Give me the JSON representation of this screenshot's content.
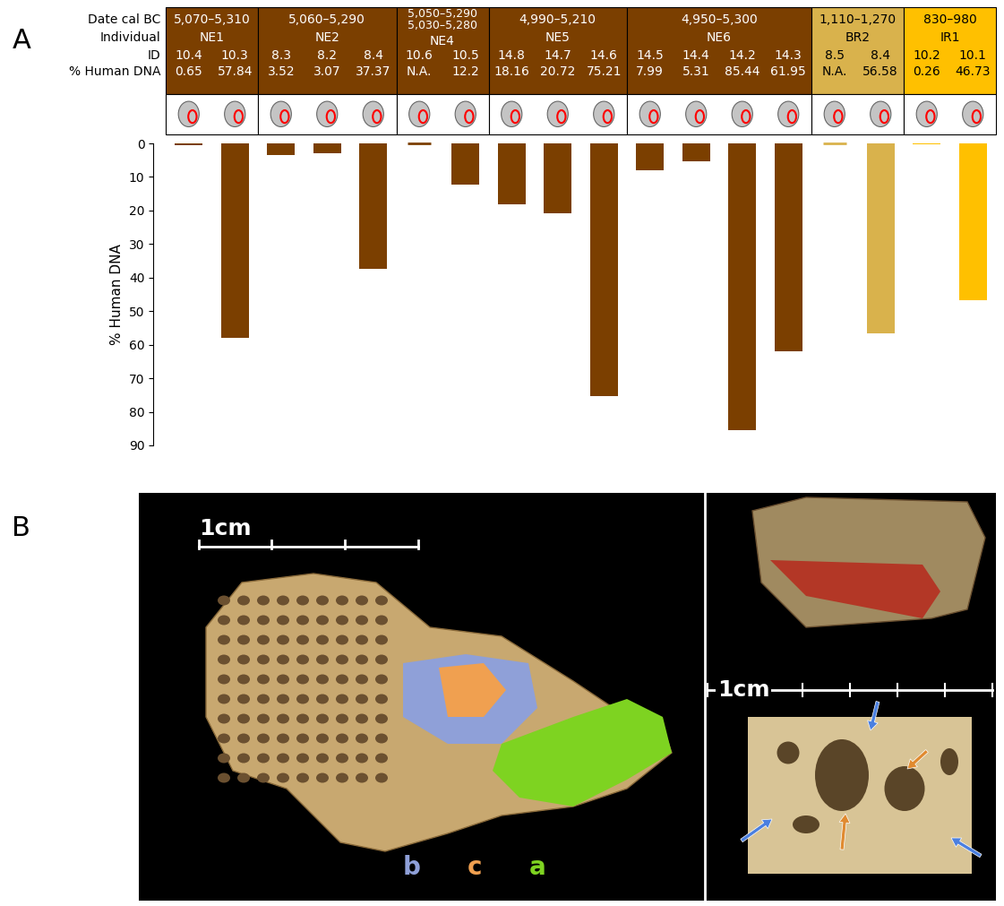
{
  "panel_labels": [
    "A",
    "B"
  ],
  "header": {
    "row_labels": [
      "Date cal BC",
      "Individual",
      "ID",
      "% Human DNA"
    ],
    "groups": [
      {
        "individual": "NE1",
        "dates": [
          "5,070–5,310"
        ],
        "ids": [
          "10.4",
          "10.3"
        ],
        "color": "#7b3f00"
      },
      {
        "individual": "NE2",
        "dates": [
          "5,060–5,290"
        ],
        "ids": [
          "8.3",
          "8.2",
          "8.4"
        ],
        "color": "#7b3f00"
      },
      {
        "individual": "NE4",
        "dates": [
          "5,050–5,290",
          "5,030–5,280"
        ],
        "ids": [
          "10.6",
          "10.5"
        ],
        "color": "#7b3f00"
      },
      {
        "individual": "NE5",
        "dates": [
          "4,990–5,210"
        ],
        "ids": [
          "14.8",
          "14.7",
          "14.6"
        ],
        "color": "#7b3f00"
      },
      {
        "individual": "NE6",
        "dates": [
          "4,950–5,300"
        ],
        "ids": [
          "14.5",
          "14.4",
          "14.2",
          "14.3"
        ],
        "color": "#7b3f00"
      },
      {
        "individual": "BR2",
        "dates": [
          "1,110–1,270"
        ],
        "ids": [
          "8.5",
          "8.4"
        ],
        "color": "#d9b24c"
      },
      {
        "individual": "IR1",
        "dates": [
          "830–980"
        ],
        "ids": [
          "10.2",
          "10.1"
        ],
        "color": "#ffc000"
      }
    ]
  },
  "chart_data": {
    "type": "bar",
    "y_label": "% Human DNA",
    "categories": [
      "10.4",
      "10.3",
      "8.3",
      "8.2",
      "8.4",
      "10.6",
      "10.5",
      "14.8",
      "14.7",
      "14.6",
      "14.5",
      "14.4",
      "14.2",
      "14.3",
      "8.5",
      "8.4",
      "10.2",
      "10.1"
    ],
    "values": [
      0.65,
      57.84,
      3.52,
      3.07,
      37.37,
      null,
      12.2,
      18.16,
      20.72,
      75.21,
      7.99,
      5.31,
      85.44,
      61.95,
      null,
      56.58,
      0.26,
      46.73
    ],
    "value_labels": [
      "0.65",
      "57.84",
      "3.52",
      "3.07",
      "37.37",
      "N.A.",
      "12.2",
      "18.16",
      "20.72",
      "75.21",
      "7.99",
      "5.31",
      "85.44",
      "61.95",
      "N.A.",
      "56.58",
      "0.26",
      "46.73"
    ],
    "colors": [
      "#7b3f00",
      "#7b3f00",
      "#7b3f00",
      "#7b3f00",
      "#7b3f00",
      "#7b3f00",
      "#7b3f00",
      "#7b3f00",
      "#7b3f00",
      "#7b3f00",
      "#7b3f00",
      "#7b3f00",
      "#7b3f00",
      "#7b3f00",
      "#d9b24c",
      "#d9b24c",
      "#ffc000",
      "#ffc000"
    ],
    "ylim": [
      90,
      0
    ],
    "yticks": [
      0,
      10,
      20,
      30,
      40,
      50,
      60,
      70,
      80,
      90
    ],
    "tick_labels": "y",
    "grid": false
  },
  "photo_panel": {
    "scale_labels": [
      "1cm",
      "1cm"
    ],
    "region_labels": [
      {
        "text": "b",
        "color": "#8fa0d8"
      },
      {
        "text": "c",
        "color": "#f0a050"
      },
      {
        "text": "a",
        "color": "#7ed321"
      }
    ]
  }
}
